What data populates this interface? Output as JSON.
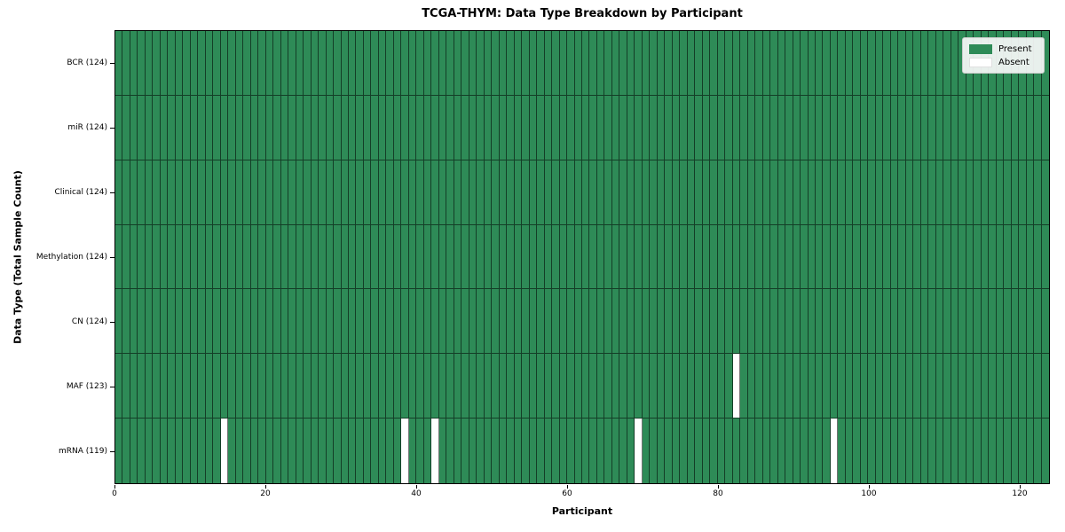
{
  "figure": {
    "title": "TCGA-THYM: Data Type Breakdown by Participant",
    "xlabel": "Participant",
    "ylabel": "Data Type (Total Sample Count)"
  },
  "legend": {
    "present_label": "Present",
    "absent_label": "Absent"
  },
  "chart_data": {
    "type": "heatmap",
    "title": "TCGA-THYM: Data Type Breakdown by Participant",
    "xlabel": "Participant",
    "ylabel": "Data Type (Total Sample Count)",
    "n_participants": 124,
    "xlim": [
      0,
      124
    ],
    "x_ticks": [
      0,
      20,
      40,
      60,
      80,
      100,
      120
    ],
    "rows": [
      {
        "data_type": "BCR",
        "label": "BCR (124)",
        "total_samples": 124,
        "absent_participants": []
      },
      {
        "data_type": "miR",
        "label": "miR (124)",
        "total_samples": 124,
        "absent_participants": []
      },
      {
        "data_type": "Clinical",
        "label": "Clinical (124)",
        "total_samples": 124,
        "absent_participants": []
      },
      {
        "data_type": "Methylation",
        "label": "Methylation (124)",
        "total_samples": 124,
        "absent_participants": []
      },
      {
        "data_type": "CN",
        "label": "CN (124)",
        "total_samples": 124,
        "absent_participants": []
      },
      {
        "data_type": "MAF",
        "label": "MAF (123)",
        "total_samples": 123,
        "absent_participants": [
          82
        ]
      },
      {
        "data_type": "mRNA",
        "label": "mRNA (119)",
        "total_samples": 119,
        "absent_participants": [
          14,
          38,
          42,
          69,
          95
        ]
      }
    ],
    "colors": {
      "present": "#2e8b57",
      "absent": "#ffffff"
    },
    "legend": {
      "entries": [
        "Present",
        "Absent"
      ],
      "position": "upper right"
    },
    "grid": "per-cell borders, black outer frame"
  }
}
